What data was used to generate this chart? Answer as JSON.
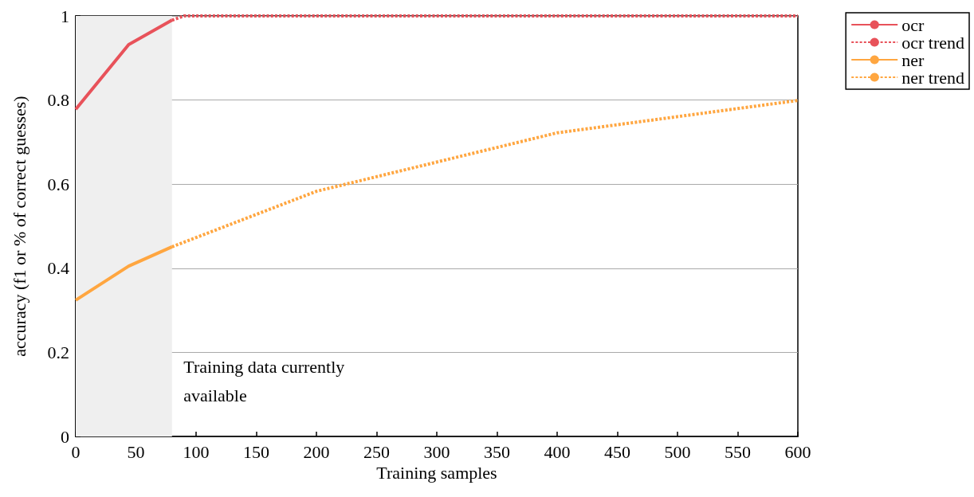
{
  "chart_data": {
    "type": "line",
    "xlabel": "Training samples",
    "ylabel": "accuracy (f1 or % of correct guesses)",
    "series": [
      {
        "name": "ocr",
        "color": "#e8525a",
        "line_style": "solid",
        "x": [
          0,
          44,
          80
        ],
        "values": [
          0.778,
          0.932,
          0.99
        ]
      },
      {
        "name": "ocr trend",
        "color": "#e8525a",
        "line_style": "dashed",
        "x": [
          80,
          90,
          600
        ],
        "values": [
          0.99,
          1,
          1
        ]
      },
      {
        "name": "ner",
        "color": "#ffa640",
        "line_style": "solid",
        "x": [
          0,
          44,
          80
        ],
        "values": [
          0.324,
          0.405,
          0.451
        ]
      },
      {
        "name": "ner trend",
        "color": "#ffa640",
        "line_style": "dashed",
        "x": [
          80,
          200,
          400,
          600
        ],
        "values": [
          0.451,
          0.583,
          0.722,
          0.799
        ]
      }
    ],
    "xlim": [
      0,
      600
    ],
    "xticks": [
      0,
      50,
      100,
      150,
      200,
      250,
      300,
      350,
      400,
      450,
      500,
      550,
      600
    ],
    "ylim": [
      0,
      1
    ],
    "yticks": [
      0,
      0.2,
      0.4,
      0.6,
      0.8,
      1
    ],
    "bands": [
      {
        "axis": "x",
        "from": 0,
        "to": 80,
        "label": "Training data currently available",
        "color": "#efefef"
      }
    ],
    "grid": "y",
    "legend": "top right",
    "marker": "none"
  }
}
